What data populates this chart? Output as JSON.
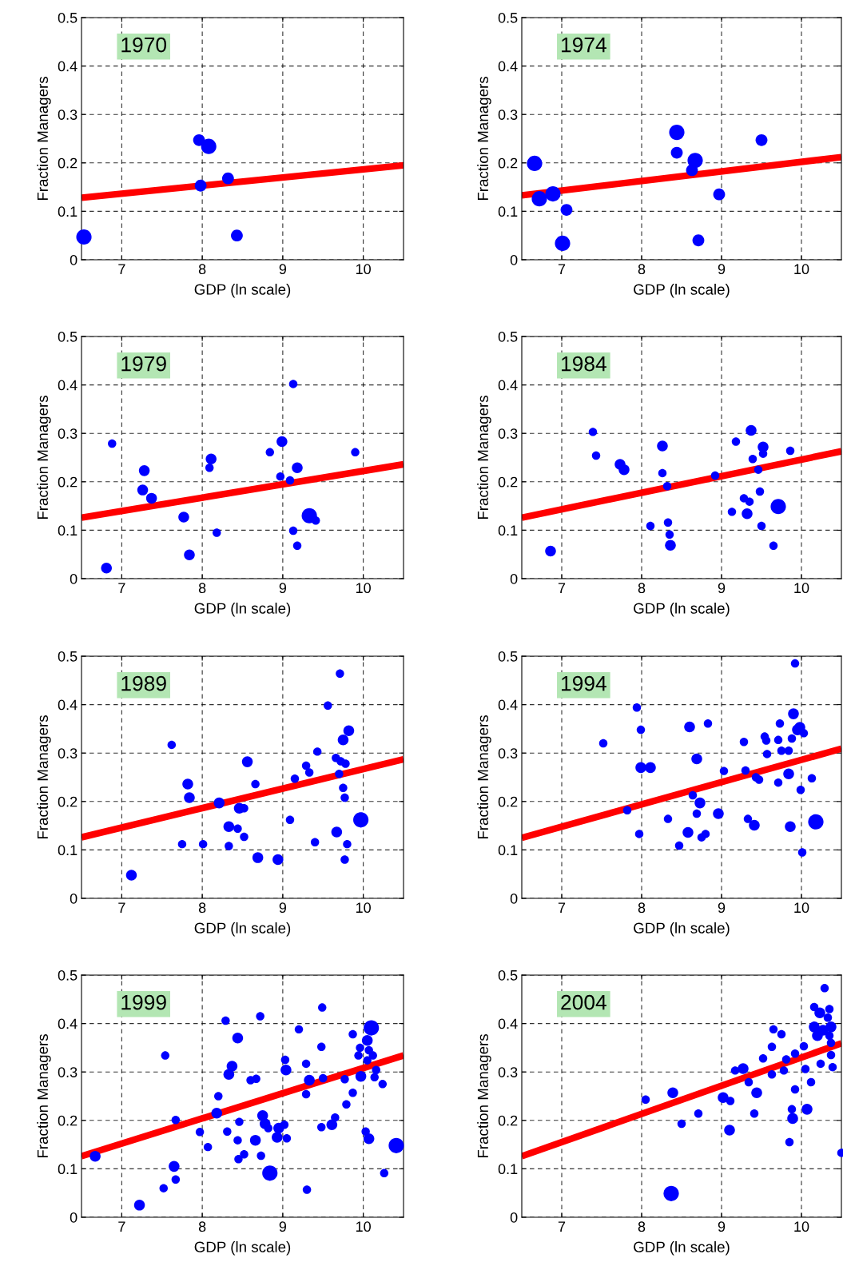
{
  "chart_data": [
    {
      "type": "bubble",
      "xlabel": "GDP (ln scale)",
      "ylabel": "Fraction Managers",
      "annotations": [
        "1970"
      ],
      "xlim": [
        6.5,
        10.5
      ],
      "ylim": [
        0,
        0.5
      ],
      "xticks": [
        7,
        8,
        9,
        10
      ],
      "yticks": [
        0,
        0.1,
        0.2,
        0.3,
        0.4,
        0.5
      ],
      "grid": true,
      "series": [
        {
          "color": "#0000ff",
          "x": [
            6.53,
            7.96,
            8.08,
            7.98,
            8.32,
            8.43
          ],
          "values": [
            0.047,
            0.247,
            0.234,
            0.153,
            0.168,
            0.05
          ],
          "sizes": [
            1,
            0.6,
            1,
            0.6,
            0.6,
            0.6
          ]
        },
        {
          "type": "line",
          "color": "#ff0000",
          "x": [
            6.5,
            10.5
          ],
          "values": [
            0.128,
            0.195
          ]
        }
      ]
    },
    {
      "type": "bubble",
      "xlabel": "GDP (ln scale)",
      "ylabel": "Fraction Managers",
      "annotations": [
        "1974"
      ],
      "xlim": [
        6.5,
        10.5
      ],
      "ylim": [
        0,
        0.5
      ],
      "xticks": [
        7,
        8,
        9,
        10
      ],
      "yticks": [
        0,
        0.1,
        0.2,
        0.3,
        0.4,
        0.5
      ],
      "grid": true,
      "series": [
        {
          "color": "#0000ff",
          "x": [
            6.66,
            6.72,
            6.89,
            7.06,
            7.01,
            8.44,
            8.44,
            8.67,
            8.63,
            8.97,
            8.71,
            9.5
          ],
          "values": [
            0.199,
            0.126,
            0.136,
            0.103,
            0.034,
            0.263,
            0.221,
            0.205,
            0.185,
            0.135,
            0.04,
            0.247
          ],
          "sizes": [
            1,
            1,
            1,
            0.6,
            1,
            1,
            0.6,
            1,
            0.6,
            0.6,
            0.6,
            0.6
          ]
        },
        {
          "type": "line",
          "color": "#ff0000",
          "x": [
            6.5,
            10.5
          ],
          "values": [
            0.133,
            0.212
          ]
        }
      ]
    },
    {
      "type": "bubble",
      "xlabel": "GDP (ln scale)",
      "ylabel": "Fraction Managers",
      "annotations": [
        "1979"
      ],
      "xlim": [
        6.5,
        10.5
      ],
      "ylim": [
        0,
        0.5
      ],
      "xticks": [
        7,
        8,
        9,
        10
      ],
      "yticks": [
        0,
        0.1,
        0.2,
        0.3,
        0.4,
        0.5
      ],
      "grid": true,
      "series": [
        {
          "color": "#0000ff",
          "x": [
            6.88,
            7.28,
            7.26,
            7.37,
            7.77,
            7.84,
            6.81,
            8.11,
            8.09,
            8.18,
            8.84,
            8.99,
            9.13,
            8.97,
            9.09,
            9.18,
            9.33,
            9.41,
            9.13,
            9.18,
            9.9
          ],
          "values": [
            0.279,
            0.223,
            0.183,
            0.166,
            0.127,
            0.049,
            0.022,
            0.247,
            0.229,
            0.095,
            0.261,
            0.283,
            0.402,
            0.211,
            0.203,
            0.229,
            0.13,
            0.12,
            0.099,
            0.068,
            0.261
          ],
          "sizes": [
            0.3,
            0.5,
            0.5,
            0.5,
            0.5,
            0.5,
            0.5,
            0.5,
            0.3,
            0.3,
            0.3,
            0.5,
            0.3,
            0.3,
            0.3,
            0.5,
            1,
            0.3,
            0.3,
            0.3,
            0.3
          ]
        },
        {
          "type": "line",
          "color": "#ff0000",
          "x": [
            6.5,
            10.5
          ],
          "values": [
            0.126,
            0.236
          ]
        }
      ]
    },
    {
      "type": "bubble",
      "xlabel": "GDP (ln scale)",
      "ylabel": "Fraction Managers",
      "annotations": [
        "1984"
      ],
      "xlim": [
        6.5,
        10.5
      ],
      "ylim": [
        0,
        0.5
      ],
      "xticks": [
        7,
        8,
        9,
        10
      ],
      "yticks": [
        0,
        0.1,
        0.2,
        0.3,
        0.4,
        0.5
      ],
      "grid": true,
      "series": [
        {
          "color": "#0000ff",
          "x": [
            7.39,
            7.43,
            7.73,
            7.78,
            8.26,
            8.26,
            8.32,
            8.11,
            8.33,
            8.35,
            8.36,
            6.86,
            8.92,
            9.18,
            9.37,
            9.52,
            9.52,
            9.39,
            9.46,
            9.48,
            9.28,
            9.35,
            9.13,
            9.32,
            9.71,
            9.5,
            9.65,
            9.86
          ],
          "values": [
            0.303,
            0.254,
            0.236,
            0.225,
            0.274,
            0.218,
            0.191,
            0.109,
            0.116,
            0.091,
            0.069,
            0.057,
            0.213,
            0.283,
            0.306,
            0.272,
            0.258,
            0.247,
            0.225,
            0.18,
            0.166,
            0.159,
            0.138,
            0.134,
            0.149,
            0.109,
            0.068,
            0.264
          ],
          "sizes": [
            0.3,
            0.3,
            0.5,
            0.5,
            0.5,
            0.3,
            0.3,
            0.3,
            0.3,
            0.3,
            0.5,
            0.5,
            0.3,
            0.3,
            0.5,
            0.5,
            0.3,
            0.3,
            0.3,
            0.3,
            0.3,
            0.3,
            0.3,
            0.5,
            1,
            0.3,
            0.3,
            0.3
          ]
        },
        {
          "type": "line",
          "color": "#ff0000",
          "x": [
            6.5,
            10.5
          ],
          "values": [
            0.126,
            0.263
          ]
        }
      ]
    },
    {
      "type": "bubble",
      "xlabel": "GDP (ln scale)",
      "ylabel": "Fraction Managers",
      "annotations": [
        "1989"
      ],
      "xlim": [
        6.5,
        10.5
      ],
      "ylim": [
        0,
        0.5
      ],
      "xticks": [
        7,
        8,
        9,
        10
      ],
      "yticks": [
        0,
        0.1,
        0.2,
        0.3,
        0.4,
        0.5
      ],
      "grid": true,
      "series": [
        {
          "color": "#0000ff",
          "x": [
            9.71,
            9.56,
            9.82,
            9.75,
            7.62,
            9.43,
            8.56,
            9.66,
            9.78,
            9.72,
            9.29,
            9.33,
            9.7,
            9.15,
            8.66,
            7.82,
            7.84,
            8.21,
            9.75,
            9.77,
            8.46,
            8.52,
            9.09,
            9.97,
            8.33,
            8.44,
            8.52,
            9.67,
            9.4,
            9.8,
            7.75,
            8.01,
            8.33,
            8.69,
            8.94,
            9.77,
            7.12
          ],
          "values": [
            0.464,
            0.398,
            0.346,
            0.327,
            0.317,
            0.303,
            0.282,
            0.29,
            0.278,
            0.283,
            0.274,
            0.26,
            0.257,
            0.247,
            0.236,
            0.236,
            0.208,
            0.197,
            0.228,
            0.208,
            0.186,
            0.186,
            0.162,
            0.162,
            0.148,
            0.144,
            0.127,
            0.137,
            0.116,
            0.112,
            0.112,
            0.112,
            0.108,
            0.084,
            0.08,
            0.08,
            0.048
          ],
          "sizes": [
            0.3,
            0.3,
            0.5,
            0.5,
            0.3,
            0.3,
            0.5,
            0.3,
            0.3,
            0.3,
            0.3,
            0.3,
            0.3,
            0.3,
            0.3,
            0.5,
            0.5,
            0.5,
            0.3,
            0.3,
            0.5,
            0.3,
            0.3,
            1,
            0.5,
            0.3,
            0.3,
            0.5,
            0.3,
            0.3,
            0.3,
            0.3,
            0.3,
            0.5,
            0.5,
            0.3,
            0.5
          ]
        },
        {
          "type": "line",
          "color": "#ff0000",
          "x": [
            6.5,
            10.5
          ],
          "values": [
            0.126,
            0.287
          ]
        }
      ]
    },
    {
      "type": "bubble",
      "xlabel": "GDP (ln scale)",
      "ylabel": "Fraction Managers",
      "annotations": [
        "1994"
      ],
      "xlim": [
        6.5,
        10.5
      ],
      "ylim": [
        0,
        0.5
      ],
      "xticks": [
        7,
        8,
        9,
        10
      ],
      "yticks": [
        0,
        0.1,
        0.2,
        0.3,
        0.4,
        0.5
      ],
      "grid": true,
      "series": [
        {
          "color": "#0000ff",
          "x": [
            9.92,
            7.94,
            9.9,
            8.83,
            8.6,
            7.99,
            9.73,
            9.98,
            9.95,
            10.03,
            7.52,
            9.54,
            9.56,
            9.71,
            9.88,
            9.28,
            9.75,
            9.84,
            9.57,
            8.69,
            7.99,
            8.11,
            9.03,
            9.3,
            9.84,
            9.43,
            9.47,
            9.71,
            10.13,
            9.99,
            8.64,
            8.73,
            7.82,
            8.96,
            8.69,
            8.33,
            9.33,
            9.41,
            9.86,
            10.18,
            7.97,
            8.58,
            8.8,
            8.75,
            8.47,
            10.01
          ],
          "values": [
            0.485,
            0.394,
            0.381,
            0.361,
            0.354,
            0.348,
            0.361,
            0.353,
            0.348,
            0.341,
            0.32,
            0.334,
            0.326,
            0.327,
            0.33,
            0.323,
            0.305,
            0.305,
            0.298,
            0.288,
            0.27,
            0.27,
            0.263,
            0.264,
            0.257,
            0.25,
            0.245,
            0.239,
            0.248,
            0.224,
            0.213,
            0.197,
            0.182,
            0.175,
            0.175,
            0.164,
            0.164,
            0.151,
            0.148,
            0.158,
            0.133,
            0.136,
            0.133,
            0.126,
            0.109,
            0.095
          ],
          "sizes": [
            0.3,
            0.3,
            0.5,
            0.3,
            0.5,
            0.3,
            0.3,
            0.5,
            0.5,
            0.3,
            0.3,
            0.3,
            0.3,
            0.3,
            0.3,
            0.3,
            0.3,
            0.3,
            0.3,
            0.5,
            0.5,
            0.5,
            0.3,
            0.3,
            0.5,
            0.3,
            0.3,
            0.3,
            0.3,
            0.3,
            0.3,
            0.5,
            0.3,
            0.5,
            0.3,
            0.3,
            0.3,
            0.5,
            0.5,
            1,
            0.3,
            0.5,
            0.3,
            0.3,
            0.3,
            0.3
          ]
        },
        {
          "type": "line",
          "color": "#ff0000",
          "x": [
            6.5,
            10.5
          ],
          "values": [
            0.125,
            0.309
          ]
        }
      ]
    },
    {
      "type": "bubble",
      "xlabel": "GDP (ln scale)",
      "ylabel": "Fraction Managers",
      "annotations": [
        "1999"
      ],
      "xlim": [
        6.5,
        10.5
      ],
      "ylim": [
        0,
        0.5
      ],
      "xticks": [
        7,
        8,
        9,
        10
      ],
      "yticks": [
        0,
        0.1,
        0.2,
        0.3,
        0.4,
        0.5
      ],
      "grid": true,
      "series": [
        {
          "color": "#0000ff",
          "x": [
            9.49,
            8.72,
            8.29,
            10.1,
            9.2,
            9.87,
            8.44,
            10.05,
            9.48,
            9.96,
            10.07,
            9.94,
            10.12,
            7.54,
            10.05,
            9.03,
            9.29,
            8.37,
            8.33,
            9.04,
            10.16,
            9.97,
            10.14,
            9.5,
            9.77,
            9.33,
            8.6,
            8.67,
            10.24,
            9.29,
            9.87,
            8.2,
            9.79,
            8.18,
            7.67,
            8.75,
            8.46,
            8.78,
            8.82,
            9.02,
            8.95,
            9.65,
            9.61,
            9.48,
            7.97,
            8.31,
            10.03,
            10.07,
            8.93,
            9.05,
            8.66,
            8.44,
            8.07,
            10.41,
            8.52,
            8.45,
            8.73,
            6.67,
            7.65,
            8.84,
            10.26,
            7.67,
            7.52,
            9.3,
            7.22
          ],
          "values": [
            0.433,
            0.415,
            0.406,
            0.391,
            0.388,
            0.378,
            0.37,
            0.365,
            0.352,
            0.35,
            0.345,
            0.334,
            0.334,
            0.334,
            0.324,
            0.325,
            0.317,
            0.312,
            0.295,
            0.304,
            0.304,
            0.291,
            0.289,
            0.287,
            0.285,
            0.283,
            0.283,
            0.286,
            0.275,
            0.254,
            0.257,
            0.25,
            0.233,
            0.215,
            0.201,
            0.21,
            0.197,
            0.193,
            0.184,
            0.191,
            0.184,
            0.206,
            0.191,
            0.186,
            0.176,
            0.177,
            0.177,
            0.162,
            0.165,
            0.163,
            0.159,
            0.159,
            0.145,
            0.148,
            0.13,
            0.12,
            0.127,
            0.126,
            0.105,
            0.091,
            0.091,
            0.078,
            0.06,
            0.057,
            0.025
          ],
          "sizes": [
            0.3,
            0.3,
            0.3,
            1,
            0.3,
            0.3,
            0.5,
            0.5,
            0.3,
            0.3,
            0.3,
            0.3,
            0.3,
            0.3,
            0.3,
            0.3,
            0.3,
            0.5,
            0.5,
            0.5,
            0.3,
            0.5,
            0.3,
            0.3,
            0.3,
            0.5,
            0.3,
            0.3,
            0.3,
            0.3,
            0.3,
            0.3,
            0.3,
            0.5,
            0.3,
            0.5,
            0.3,
            0.5,
            0.3,
            0.3,
            0.5,
            0.3,
            0.5,
            0.3,
            0.3,
            0.3,
            0.3,
            0.5,
            0.5,
            0.3,
            0.5,
            0.3,
            0.3,
            1,
            0.3,
            0.3,
            0.3,
            0.5,
            0.5,
            1,
            0.3,
            0.3,
            0.3,
            0.3,
            0.5
          ]
        },
        {
          "type": "line",
          "color": "#ff0000",
          "x": [
            6.5,
            10.5
          ],
          "values": [
            0.126,
            0.334
          ]
        }
      ]
    },
    {
      "type": "bubble",
      "xlabel": "GDP (ln scale)",
      "ylabel": "Fraction Managers",
      "annotations": [
        "2004"
      ],
      "xlim": [
        6.5,
        10.5
      ],
      "ylim": [
        0,
        0.5
      ],
      "xticks": [
        7,
        8,
        9,
        10
      ],
      "yticks": [
        0,
        0.1,
        0.2,
        0.3,
        0.4,
        0.5
      ],
      "grid": true,
      "series": [
        {
          "color": "#0000ff",
          "x": [
            10.29,
            10.16,
            10.35,
            10.23,
            10.33,
            10.16,
            10.37,
            10.27,
            10.2,
            10.35,
            9.65,
            9.75,
            10.37,
            9.63,
            10.03,
            9.92,
            10.37,
            9.52,
            9.81,
            10.24,
            10.39,
            9.27,
            9.17,
            9.78,
            10.05,
            9.63,
            9.34,
            10.12,
            9.92,
            8.39,
            9.44,
            8.05,
            9.02,
            9.11,
            10.07,
            9.88,
            8.71,
            9.41,
            9.89,
            8.5,
            9.1,
            9.85,
            10.5,
            8.37
          ],
          "values": [
            0.473,
            0.434,
            0.43,
            0.422,
            0.412,
            0.393,
            0.393,
            0.386,
            0.375,
            0.375,
            0.388,
            0.378,
            0.36,
            0.352,
            0.353,
            0.338,
            0.335,
            0.328,
            0.326,
            0.317,
            0.31,
            0.307,
            0.303,
            0.303,
            0.306,
            0.295,
            0.279,
            0.279,
            0.264,
            0.257,
            0.257,
            0.243,
            0.247,
            0.24,
            0.223,
            0.223,
            0.214,
            0.214,
            0.204,
            0.193,
            0.18,
            0.155,
            0.133,
            0.049
          ],
          "sizes": [
            0.3,
            0.3,
            0.3,
            0.5,
            0.3,
            0.5,
            0.5,
            0.5,
            0.5,
            0.3,
            0.3,
            0.3,
            0.3,
            0.3,
            0.3,
            0.3,
            0.3,
            0.3,
            0.3,
            0.3,
            0.3,
            0.5,
            0.3,
            0.3,
            0.3,
            0.3,
            0.3,
            0.3,
            0.3,
            0.5,
            0.5,
            0.3,
            0.5,
            0.3,
            0.5,
            0.3,
            0.3,
            0.3,
            0.5,
            0.3,
            0.5,
            0.3,
            0.3,
            1
          ]
        },
        {
          "type": "line",
          "color": "#ff0000",
          "x": [
            6.5,
            10.5
          ],
          "values": [
            0.126,
            0.359
          ]
        }
      ]
    }
  ]
}
